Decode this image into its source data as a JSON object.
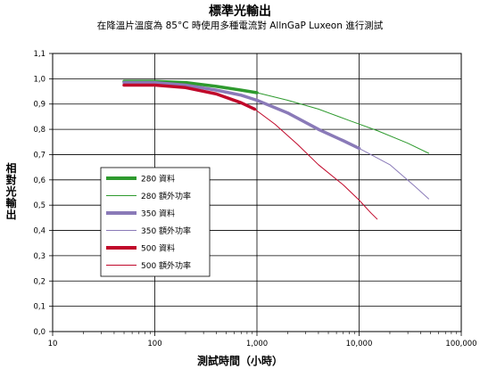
{
  "chart_data": {
    "type": "line",
    "title": "標準光輸出",
    "subtitle": "在降溫片溫度為 85°C 時使用多種電流對 AllnGaP Luxeon 進行測試",
    "xlabel": "測試時間（小時）",
    "ylabel": "相對光輸出",
    "xscale": "log",
    "xlim": [
      10,
      100000
    ],
    "ylim": [
      0,
      1.1
    ],
    "x_ticks": [
      10,
      100,
      1000,
      10000,
      100000
    ],
    "x_tick_labels": [
      "10",
      "100",
      "1,000",
      "10,000",
      "100,000"
    ],
    "y_ticks": [
      0,
      0.1,
      0.2,
      0.3,
      0.4,
      0.5,
      0.6,
      0.7,
      0.8,
      0.9,
      1.0,
      1.1
    ],
    "y_tick_labels": [
      "0,0",
      "0,1",
      "0,2",
      "0,3",
      "0,4",
      "0,5",
      "0,6",
      "0,7",
      "0,8",
      "0,9",
      "1,0",
      "1,1"
    ],
    "grid": true,
    "legend_position": "left-middle",
    "series": [
      {
        "name": "280 資料",
        "color": "#2e9a2e",
        "style": "thick",
        "x": [
          50,
          100,
          200,
          400,
          700,
          1000
        ],
        "y": [
          0.99,
          0.99,
          0.985,
          0.97,
          0.955,
          0.945
        ]
      },
      {
        "name": "280 額外功率",
        "color": "#2e9a2e",
        "style": "thin",
        "x": [
          1000,
          2000,
          4000,
          8000,
          15000,
          30000,
          48000
        ],
        "y": [
          0.945,
          0.915,
          0.88,
          0.835,
          0.795,
          0.745,
          0.705
        ]
      },
      {
        "name": "350 資料",
        "color": "#8a7ab8",
        "style": "thick",
        "x": [
          50,
          100,
          200,
          400,
          700,
          1000,
          2000,
          4000,
          7000,
          10000
        ],
        "y": [
          0.985,
          0.985,
          0.975,
          0.955,
          0.935,
          0.915,
          0.865,
          0.8,
          0.755,
          0.725
        ]
      },
      {
        "name": "350 額外功率",
        "color": "#8a7ab8",
        "style": "thin",
        "x": [
          10000,
          20000,
          35000,
          48000
        ],
        "y": [
          0.725,
          0.66,
          0.575,
          0.525
        ]
      },
      {
        "name": "500 資料",
        "color": "#c0082a",
        "style": "thick",
        "x": [
          50,
          100,
          200,
          400,
          700,
          950
        ],
        "y": [
          0.975,
          0.975,
          0.965,
          0.94,
          0.905,
          0.88
        ]
      },
      {
        "name": "500 額外功率",
        "color": "#c0082a",
        "style": "thin",
        "x": [
          950,
          1500,
          2500,
          4000,
          7000,
          10000,
          13000,
          15000
        ],
        "y": [
          0.88,
          0.82,
          0.74,
          0.66,
          0.58,
          0.52,
          0.47,
          0.445
        ]
      }
    ]
  }
}
